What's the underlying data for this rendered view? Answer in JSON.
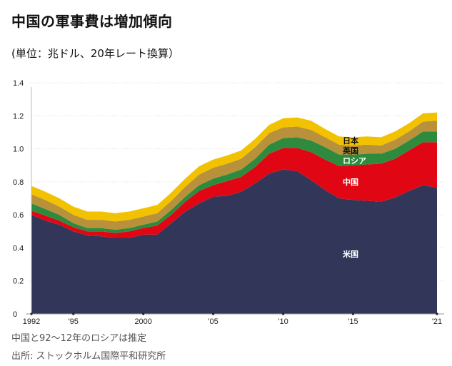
{
  "title": "中国の軍事費は増加傾向",
  "subtitle": "(単位：兆ドル、20年レート換算）",
  "notes": [
    "中国と92～12年のロシアは推定",
    "出所: ストックホルム国際平和研究所"
  ],
  "chart_data": {
    "type": "area",
    "stacked": true,
    "title": "中国の軍事費は増加傾向",
    "ylabel": "兆ドル",
    "ylim": [
      0,
      1.4
    ],
    "yticks": [
      0,
      0.2,
      0.4,
      0.6,
      0.8,
      1.0,
      1.2,
      1.4
    ],
    "ytick_labels": [
      "0",
      "0.2",
      "0.4",
      "0.6",
      "0.8",
      "1.0",
      "1.2",
      "1.4"
    ],
    "xticks": [
      1992,
      1995,
      2000,
      2005,
      2010,
      2015,
      2021
    ],
    "xtick_labels": [
      "1992",
      "'95",
      "2000",
      "'05",
      "'10",
      "'15",
      "'21"
    ],
    "grid": true,
    "x": [
      1992,
      1993,
      1994,
      1995,
      1996,
      1997,
      1998,
      1999,
      2000,
      2001,
      2002,
      2003,
      2004,
      2005,
      2006,
      2007,
      2008,
      2009,
      2010,
      2011,
      2012,
      2013,
      2014,
      2015,
      2016,
      2017,
      2018,
      2019,
      2020,
      2021
    ],
    "series": [
      {
        "name": "米国",
        "color": "#32375a",
        "label_color": "#ffffff",
        "values": [
          0.6,
          0.565,
          0.54,
          0.5,
          0.475,
          0.47,
          0.46,
          0.46,
          0.48,
          0.48,
          0.55,
          0.62,
          0.67,
          0.71,
          0.715,
          0.74,
          0.79,
          0.85,
          0.875,
          0.865,
          0.81,
          0.75,
          0.7,
          0.69,
          0.685,
          0.68,
          0.705,
          0.745,
          0.78,
          0.765
        ]
      },
      {
        "name": "中国",
        "color": "#e00614",
        "label_color": "#ffffff",
        "values": [
          0.025,
          0.03,
          0.025,
          0.025,
          0.025,
          0.03,
          0.03,
          0.04,
          0.04,
          0.055,
          0.05,
          0.06,
          0.075,
          0.07,
          0.09,
          0.09,
          0.1,
          0.12,
          0.13,
          0.14,
          0.17,
          0.185,
          0.195,
          0.21,
          0.22,
          0.23,
          0.235,
          0.245,
          0.26,
          0.275
        ]
      },
      {
        "name": "ロシア",
        "color": "#2e8b3e",
        "label_color": "#ffffff",
        "values": [
          0.045,
          0.04,
          0.035,
          0.025,
          0.02,
          0.02,
          0.02,
          0.02,
          0.02,
          0.025,
          0.03,
          0.03,
          0.035,
          0.04,
          0.04,
          0.045,
          0.05,
          0.055,
          0.06,
          0.065,
          0.07,
          0.075,
          0.07,
          0.065,
          0.065,
          0.06,
          0.06,
          0.06,
          0.065,
          0.065
        ]
      },
      {
        "name": "英国",
        "color": "#b8913a",
        "label_color": "#111111",
        "values": [
          0.055,
          0.055,
          0.05,
          0.05,
          0.05,
          0.05,
          0.05,
          0.05,
          0.05,
          0.05,
          0.055,
          0.06,
          0.065,
          0.065,
          0.065,
          0.065,
          0.07,
          0.07,
          0.065,
          0.065,
          0.065,
          0.06,
          0.06,
          0.055,
          0.055,
          0.05,
          0.055,
          0.055,
          0.06,
          0.065
        ]
      },
      {
        "name": "日本",
        "color": "#f2c200",
        "label_color": "#111111",
        "values": [
          0.05,
          0.05,
          0.05,
          0.05,
          0.05,
          0.05,
          0.05,
          0.05,
          0.05,
          0.05,
          0.05,
          0.05,
          0.05,
          0.05,
          0.05,
          0.05,
          0.05,
          0.05,
          0.055,
          0.055,
          0.055,
          0.05,
          0.05,
          0.05,
          0.05,
          0.05,
          0.05,
          0.05,
          0.05,
          0.05
        ]
      }
    ]
  }
}
